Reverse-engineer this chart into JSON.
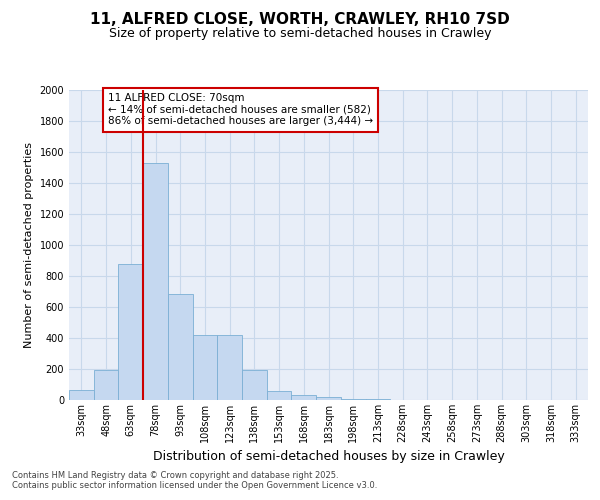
{
  "title1": "11, ALFRED CLOSE, WORTH, CRAWLEY, RH10 7SD",
  "title2": "Size of property relative to semi-detached houses in Crawley",
  "xlabel": "Distribution of semi-detached houses by size in Crawley",
  "ylabel": "Number of semi-detached properties",
  "categories": [
    "33sqm",
    "48sqm",
    "63sqm",
    "78sqm",
    "93sqm",
    "108sqm",
    "123sqm",
    "138sqm",
    "153sqm",
    "168sqm",
    "183sqm",
    "198sqm",
    "213sqm",
    "228sqm",
    "243sqm",
    "258sqm",
    "273sqm",
    "288sqm",
    "303sqm",
    "318sqm",
    "333sqm"
  ],
  "values": [
    65,
    195,
    880,
    1530,
    685,
    420,
    420,
    195,
    55,
    30,
    20,
    5,
    5,
    0,
    0,
    0,
    0,
    0,
    0,
    0,
    0
  ],
  "bar_color": "#c5d8f0",
  "bar_edge_color": "#7bafd4",
  "grid_color": "#c8d8eb",
  "bg_color": "#e8eef8",
  "red_line_x": 2.5,
  "annotation_text": "11 ALFRED CLOSE: 70sqm\n← 14% of semi-detached houses are smaller (582)\n86% of semi-detached houses are larger (3,444) →",
  "annotation_box_color": "#ffffff",
  "annotation_edge_color": "#cc0000",
  "red_line_color": "#cc0000",
  "ylim": [
    0,
    2000
  ],
  "yticks": [
    0,
    200,
    400,
    600,
    800,
    1000,
    1200,
    1400,
    1600,
    1800,
    2000
  ],
  "footer1": "Contains HM Land Registry data © Crown copyright and database right 2025.",
  "footer2": "Contains public sector information licensed under the Open Government Licence v3.0.",
  "title1_fontsize": 11,
  "title2_fontsize": 9,
  "ylabel_fontsize": 8,
  "xlabel_fontsize": 9,
  "tick_fontsize": 7,
  "annot_fontsize": 7.5,
  "footer_fontsize": 6
}
